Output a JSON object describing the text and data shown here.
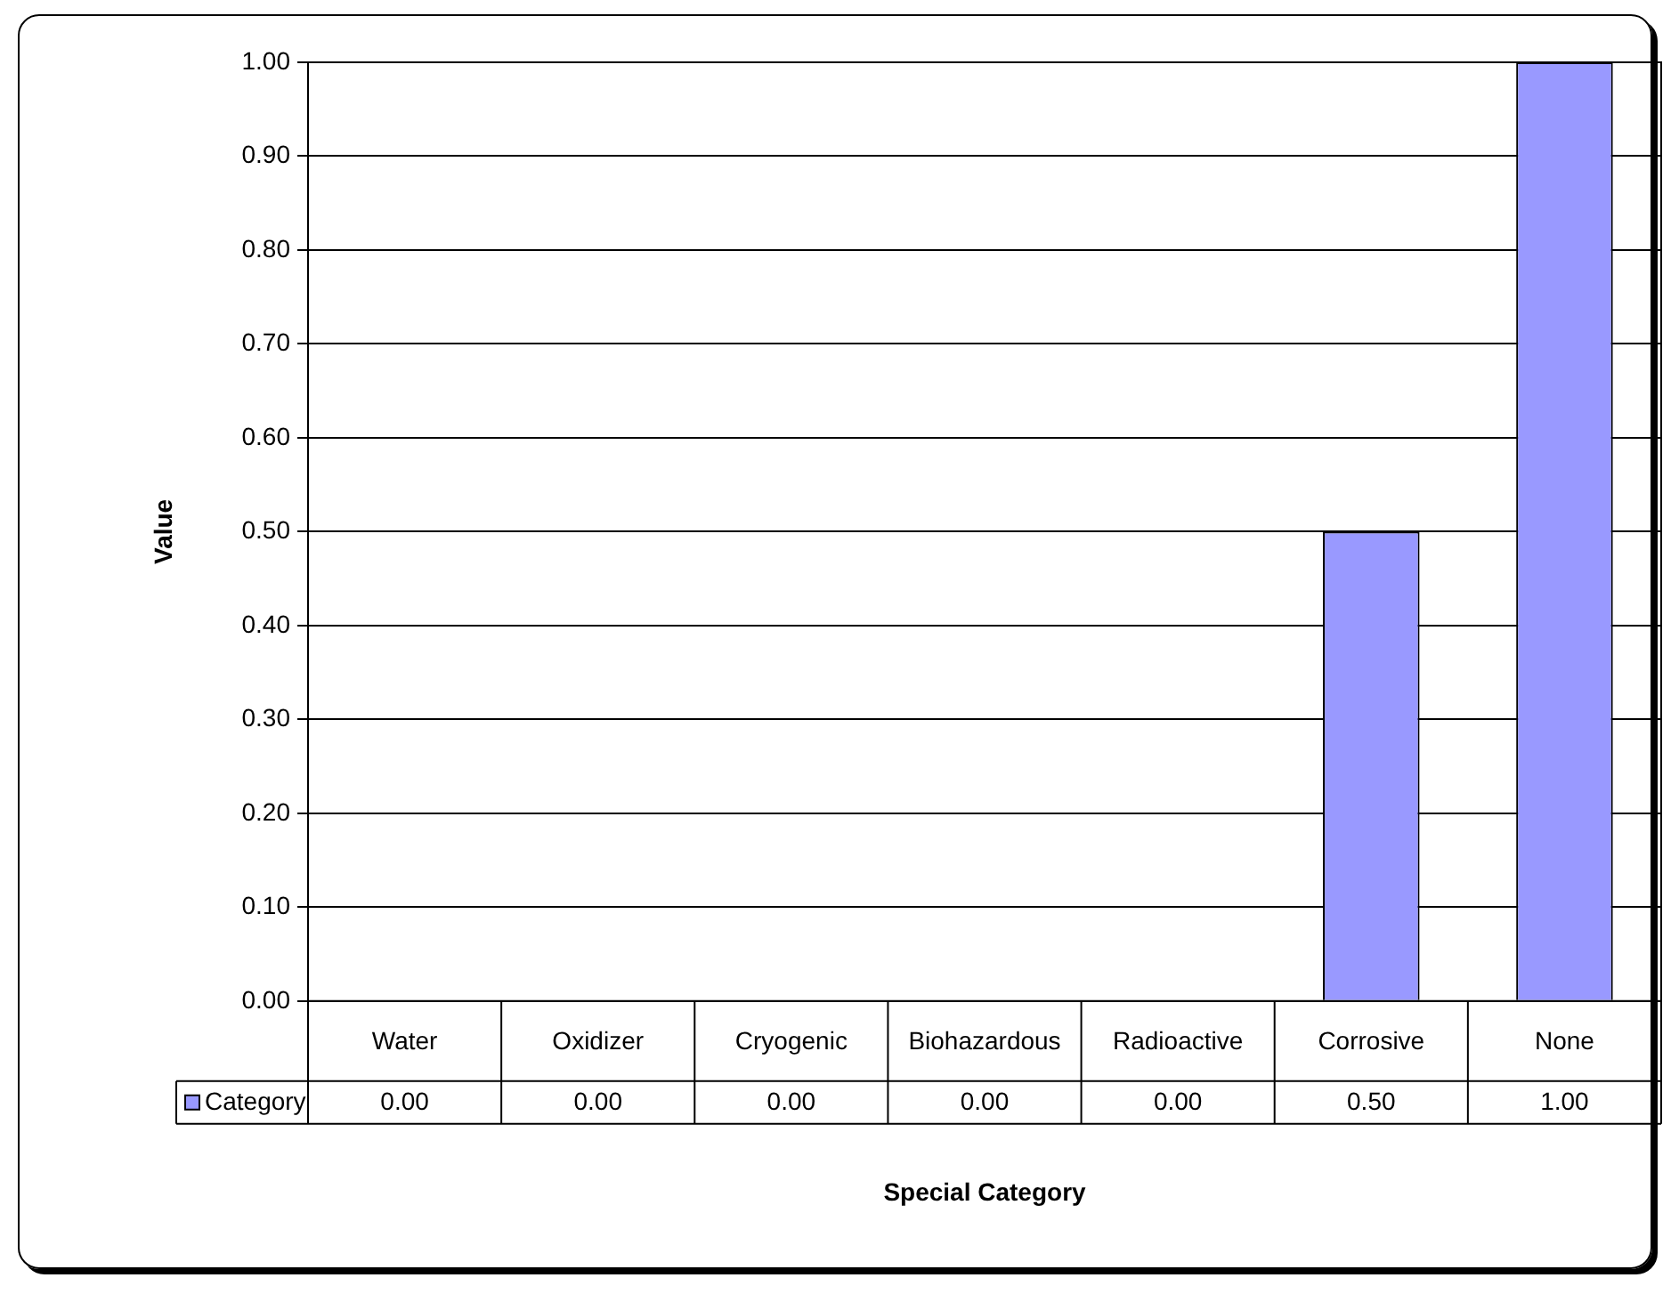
{
  "chart_data": {
    "type": "bar",
    "xlabel": "Special Category",
    "ylabel": "Value",
    "categories": [
      "Water",
      "Oxidizer",
      "Cryogenic",
      "Biohazardous",
      "Radioactive",
      "Corrosive",
      "None"
    ],
    "series": [
      {
        "name": "Category",
        "color": "#9999ff",
        "values": [
          0,
          0,
          0,
          0,
          0,
          0.5,
          1
        ],
        "value_labels": [
          "0.00",
          "0.00",
          "0.00",
          "0.00",
          "0.00",
          "0.50",
          "1.00"
        ]
      }
    ],
    "ylim": [
      0,
      1
    ],
    "yticks": [
      {
        "value": 0,
        "label": "0.00"
      },
      {
        "value": 0.1,
        "label": "0.10"
      },
      {
        "value": 0.2,
        "label": "0.20"
      },
      {
        "value": 0.3,
        "label": "0.30"
      },
      {
        "value": 0.4,
        "label": "0.40"
      },
      {
        "value": 0.5,
        "label": "0.50"
      },
      {
        "value": 0.6,
        "label": "0.60"
      },
      {
        "value": 0.7,
        "label": "0.70"
      },
      {
        "value": 0.8,
        "label": "0.80"
      },
      {
        "value": 0.9,
        "label": "0.90"
      },
      {
        "value": 1,
        "label": "1.00"
      }
    ],
    "grid": "y"
  }
}
